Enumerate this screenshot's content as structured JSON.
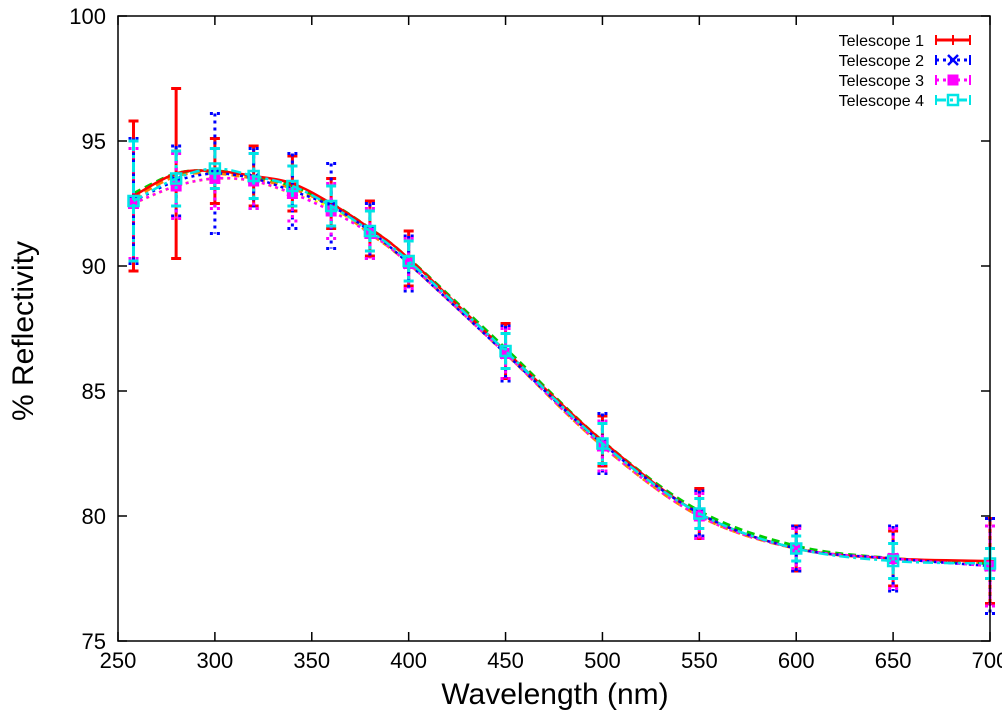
{
  "chart_data": {
    "type": "line",
    "title": "",
    "xlabel": "Wavelength (nm)",
    "ylabel": "% Reflectivity",
    "xlim": [
      250,
      700
    ],
    "ylim": [
      75,
      100
    ],
    "xticks": [
      250,
      300,
      350,
      400,
      450,
      500,
      550,
      600,
      650,
      700
    ],
    "yticks": [
      75,
      80,
      85,
      90,
      95,
      100
    ],
    "xtick_labels": [
      "250",
      "300",
      "350",
      "400",
      "450",
      "500",
      "550",
      "600",
      "650",
      "700"
    ],
    "ytick_labels": [
      "75",
      "80",
      "85",
      "90",
      "95",
      "100"
    ],
    "grid": false,
    "legend_position": "top-right",
    "x": [
      258,
      280,
      300,
      320,
      340,
      360,
      380,
      400,
      450,
      500,
      550,
      600,
      650,
      700
    ],
    "series": [
      {
        "name": "Telescope 1",
        "color": "#ff0000",
        "dash": "solid",
        "marker": "plus",
        "values": [
          92.8,
          93.7,
          93.8,
          93.6,
          93.3,
          92.5,
          91.5,
          90.3,
          86.6,
          83.0,
          80.1,
          78.7,
          78.3,
          78.2
        ],
        "errors": [
          3.0,
          3.4,
          1.3,
          1.2,
          1.1,
          1.0,
          1.1,
          1.1,
          1.1,
          1.0,
          1.0,
          0.9,
          1.1,
          1.7
        ]
      },
      {
        "name": "Telescope 2",
        "color": "#0000ff",
        "dash": "dotted",
        "marker": "x",
        "values": [
          92.6,
          93.4,
          93.7,
          93.5,
          93.0,
          92.4,
          91.4,
          90.1,
          86.5,
          82.9,
          80.1,
          78.7,
          78.3,
          78.0
        ],
        "errors": [
          2.5,
          1.4,
          2.4,
          1.2,
          1.5,
          1.7,
          1.1,
          1.1,
          1.1,
          1.2,
          0.9,
          0.9,
          1.3,
          1.9
        ]
      },
      {
        "name": "Telescope 3",
        "color": "#ff00ff",
        "dash": "dotted",
        "marker": "square-filled",
        "values": [
          92.5,
          93.2,
          93.5,
          93.4,
          92.9,
          92.2,
          91.3,
          90.1,
          86.5,
          82.8,
          80.0,
          78.7,
          78.3,
          78.0
        ],
        "errors": [
          2.2,
          1.3,
          1.2,
          1.1,
          1.1,
          1.1,
          1.0,
          1.0,
          1.0,
          1.0,
          0.9,
          0.8,
          1.2,
          1.6
        ]
      },
      {
        "name": "Telescope 4",
        "color": "#00e5e5",
        "dash": "dash-dot",
        "marker": "square-open",
        "values": [
          92.6,
          93.5,
          93.9,
          93.6,
          93.2,
          92.4,
          91.4,
          90.2,
          86.6,
          82.9,
          80.1,
          78.7,
          78.2,
          78.1
        ],
        "errors": [
          2.4,
          1.1,
          0.8,
          0.9,
          0.8,
          0.8,
          0.8,
          0.8,
          0.7,
          0.8,
          0.6,
          0.5,
          0.7,
          0.6
        ]
      }
    ],
    "fit_curves": [
      {
        "color": "#ff7f00",
        "dash": "dashed",
        "values": [
          92.7,
          93.6,
          93.7,
          93.5,
          93.1,
          92.4,
          91.3,
          90.1,
          86.5,
          82.8,
          80.0,
          78.7,
          78.3,
          78.1
        ]
      },
      {
        "color": "#ffff00",
        "dash": "dotted",
        "values": [
          92.5,
          93.2,
          93.5,
          93.4,
          92.9,
          92.3,
          91.3,
          90.1,
          86.5,
          82.8,
          80.0,
          78.7,
          78.3,
          78.1
        ]
      },
      {
        "color": "#00cc00",
        "dash": "dashed",
        "values": [
          92.9,
          93.7,
          93.8,
          93.6,
          93.2,
          92.5,
          91.5,
          90.3,
          86.7,
          83.0,
          80.2,
          78.8,
          78.3,
          78.1
        ]
      }
    ]
  }
}
